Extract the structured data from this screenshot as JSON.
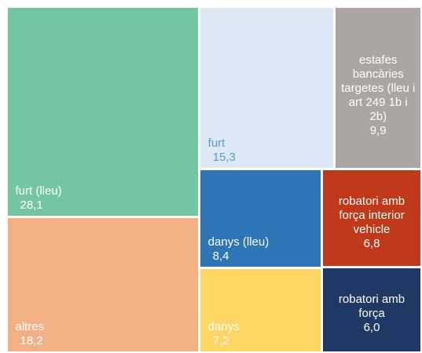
{
  "chart_data": {
    "type": "treemap",
    "categories": [
      "furt (lleu)",
      "altres",
      "furt",
      "estafes bancàries targetes (lleu i art 249 1b i 2b)",
      "danys (lleu)",
      "danys",
      "robatori amb força interior vehicle",
      "robatori amb força"
    ],
    "values": [
      28.1,
      18.2,
      15.3,
      9.9,
      8.4,
      7.2,
      6.8,
      6.0
    ],
    "value_labels": [
      "28,1",
      "18,2",
      "15,3",
      "9,9",
      "8,4",
      "7,2",
      "6,8",
      "6,0"
    ],
    "colors": [
      "#74c6a0",
      "#f2b084",
      "#dde9f5",
      "#aba6a3",
      "#2e75b6",
      "#fdd663",
      "#c0391b",
      "#1f3864"
    ],
    "text_colors": [
      "#ffffff",
      "#ffffff",
      "#5b9bd5",
      "#ffffff",
      "#ffffff",
      "#ffffff",
      "#ffffff",
      "#ffffff"
    ]
  }
}
